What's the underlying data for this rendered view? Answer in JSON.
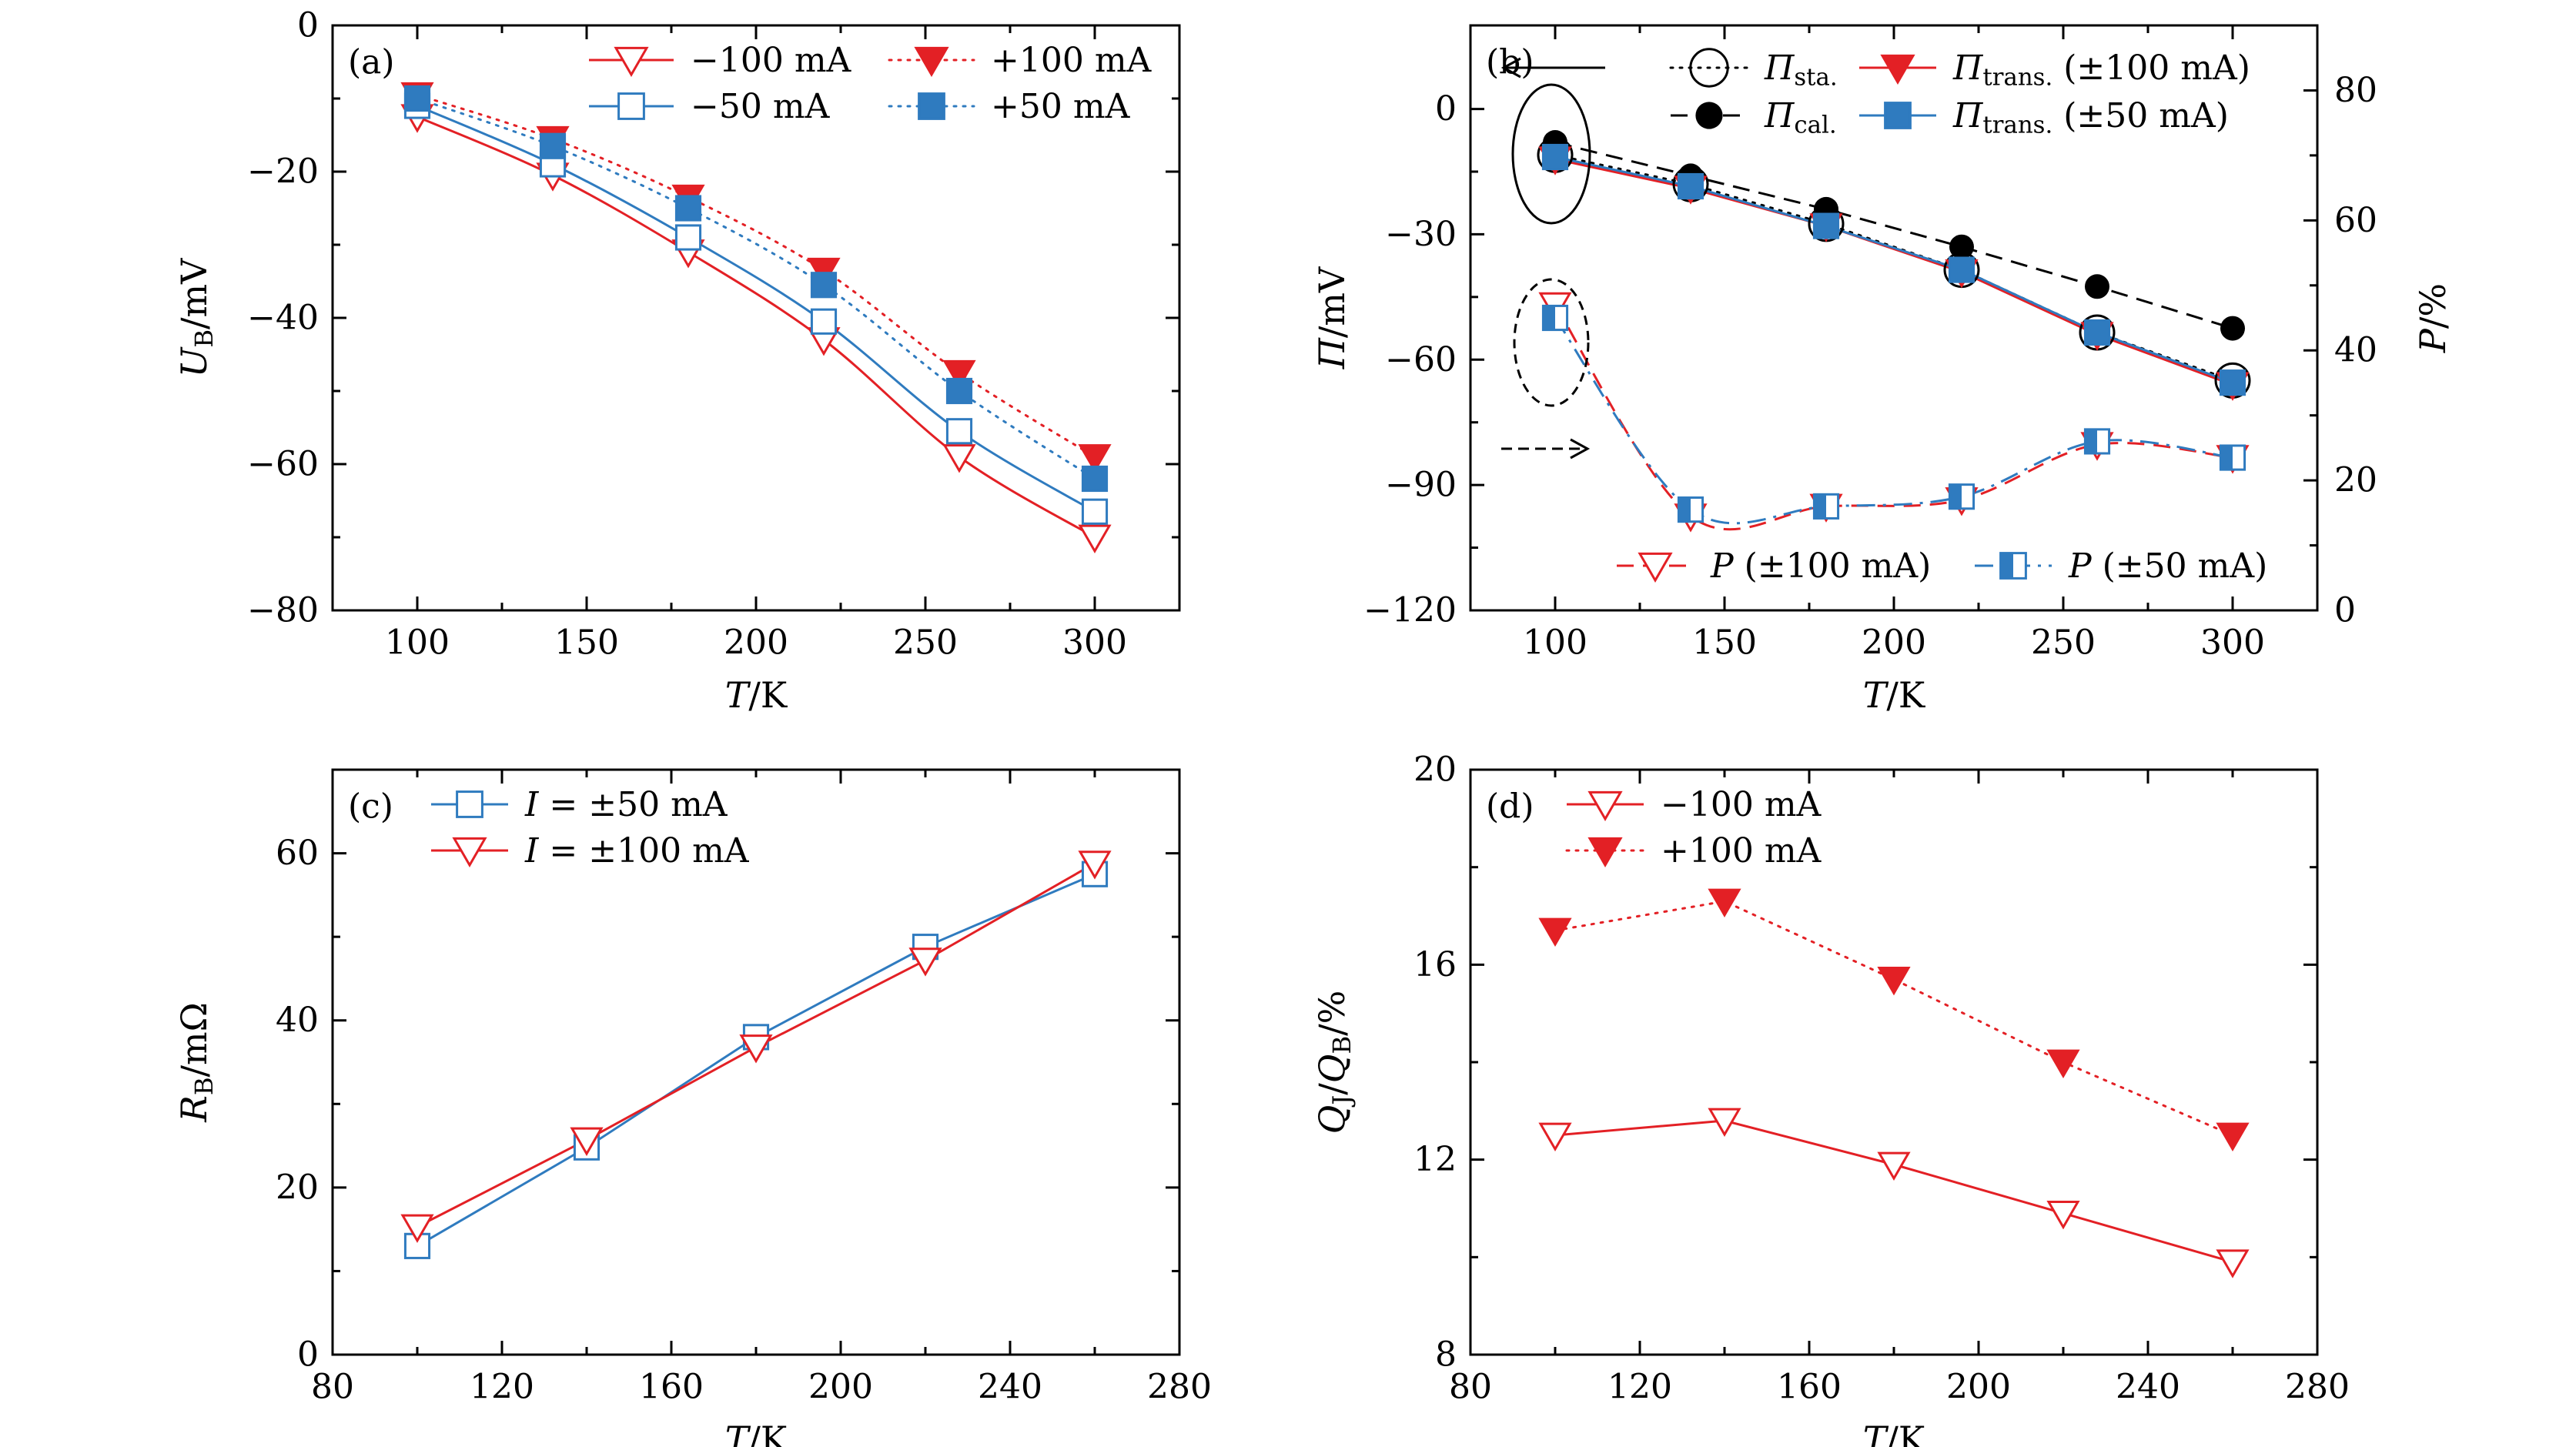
{
  "figure": {
    "colors": {
      "red": "#e32025",
      "blue": "#2f7bbf",
      "black": "#000000",
      "frame": "#000000"
    }
  },
  "chart_data": [
    {
      "id": "a",
      "panel_label": "(a)",
      "type": "line",
      "x_label": {
        "var": "T",
        "unit": "/K"
      },
      "y_label": {
        "var": "U",
        "sub": "B",
        "unit": "/mV"
      },
      "xlim": [
        75,
        325
      ],
      "ylim": [
        -80,
        0
      ],
      "x_ticks": [
        100,
        150,
        200,
        250,
        300
      ],
      "y_ticks": [
        0,
        -20,
        -40,
        -60,
        -80
      ],
      "y_tick_labels": [
        "0",
        "−20",
        "−40",
        "−60",
        "−80"
      ],
      "legend": {
        "position": "top-right",
        "columns": 2
      },
      "series": [
        {
          "name": "−100 mA",
          "color": "#e32025",
          "marker": "tri-down-open",
          "line": "solid",
          "smooth": true,
          "x": [
            100,
            140,
            180,
            220,
            260,
            300
          ],
          "y": [
            -12.5,
            -20.5,
            -31,
            -43,
            -59,
            -70
          ]
        },
        {
          "name": "+100 mA",
          "color": "#e32025",
          "marker": "tri-down-filled",
          "line": "dotted",
          "smooth": true,
          "x": [
            100,
            140,
            180,
            220,
            260,
            300
          ],
          "y": [
            -9.5,
            -15.5,
            -23.5,
            -33.5,
            -47.5,
            -59
          ]
        },
        {
          "name": "−50 mA",
          "color": "#2f7bbf",
          "marker": "square-open",
          "line": "solid",
          "smooth": true,
          "x": [
            100,
            140,
            180,
            220,
            260,
            300
          ],
          "y": [
            -11,
            -19,
            -29,
            -40.5,
            -55.5,
            -66.5
          ]
        },
        {
          "name": "+50 mA",
          "color": "#2f7bbf",
          "marker": "square-filled",
          "line": "dotted",
          "smooth": true,
          "x": [
            100,
            140,
            180,
            220,
            260,
            300
          ],
          "y": [
            -10,
            -16.5,
            -25,
            -35.5,
            -50,
            -62
          ]
        }
      ]
    },
    {
      "id": "b",
      "panel_label": "(b)",
      "type": "line",
      "x_label": {
        "var": "T",
        "unit": "/K"
      },
      "y_label": {
        "var": "Π",
        "unit": "/mV"
      },
      "y2_label": {
        "var": "P",
        "unit": "/%"
      },
      "xlim": [
        75,
        325
      ],
      "ylim": [
        -120,
        20
      ],
      "y2lim": [
        0,
        90
      ],
      "x_ticks": [
        100,
        150,
        200,
        250,
        300
      ],
      "y_ticks": [
        0,
        -30,
        -60,
        -90,
        -120
      ],
      "y_tick_labels": [
        "0",
        "−30",
        "−60",
        "−90",
        "−120"
      ],
      "y2_ticks": [
        0,
        20,
        40,
        60,
        80
      ],
      "legend": {
        "position": "top-right",
        "columns": 2
      },
      "legend_bottom": {
        "position": "bottom-right",
        "columns": 2
      },
      "series": [
        {
          "name": "Π",
          "sub": "sta.",
          "color": "#000000",
          "marker": "circle-open",
          "line": "dotted",
          "axis": "left",
          "x": [
            100,
            140,
            180,
            220,
            260,
            300
          ],
          "y": [
            -11,
            -18,
            -27.5,
            -38.5,
            -53.5,
            -65
          ]
        },
        {
          "name": "Π",
          "sub": "cal.",
          "color": "#000000",
          "marker": "circle-filled",
          "line": "dashed",
          "axis": "left",
          "x": [
            100,
            140,
            180,
            220,
            260,
            300
          ],
          "y": [
            -8,
            -16,
            -24,
            -33,
            -42.5,
            -52.5
          ]
        },
        {
          "name": "Π",
          "sub": "trans.",
          "suffix": " (±100 mA)",
          "color": "#e32025",
          "marker": "tri-down-filled",
          "line": "solid",
          "axis": "left",
          "x": [
            100,
            140,
            180,
            220,
            260,
            300
          ],
          "y": [
            -12,
            -19,
            -28,
            -39,
            -54,
            -66
          ]
        },
        {
          "name": "Π",
          "sub": "trans.",
          "suffix": " (±50 mA)",
          "color": "#2f7bbf",
          "marker": "square-filled",
          "line": "solid",
          "axis": "left",
          "x": [
            100,
            140,
            180,
            220,
            260,
            300
          ],
          "y": [
            -11.5,
            -18.5,
            -28,
            -38.5,
            -53.5,
            -65.5
          ]
        },
        {
          "name": "P",
          "suffix": " (±100 mA)",
          "color": "#e32025",
          "marker": "tri-down-open-red",
          "line": "dashed",
          "axis": "right",
          "smooth": true,
          "x": [
            100,
            140,
            180,
            220,
            260,
            300
          ],
          "y": [
            47,
            14.5,
            16,
            17,
            25.5,
            23.5
          ]
        },
        {
          "name": "P",
          "suffix": " (±50 mA)",
          "color": "#2f7bbf",
          "marker": "square-half",
          "line": "dashdot",
          "axis": "right",
          "smooth": true,
          "x": [
            100,
            140,
            180,
            220,
            260,
            300
          ],
          "y": [
            45,
            15.5,
            16,
            17.5,
            26,
            23.5
          ]
        }
      ]
    },
    {
      "id": "c",
      "panel_label": "(c)",
      "type": "line",
      "x_label": {
        "var": "T",
        "unit": "/K"
      },
      "y_label": {
        "var": "R",
        "sub": "B",
        "unit": "/mΩ"
      },
      "xlim": [
        80,
        280
      ],
      "ylim": [
        0,
        70
      ],
      "x_ticks": [
        80,
        120,
        160,
        200,
        240,
        280
      ],
      "y_ticks": [
        0,
        20,
        40,
        60
      ],
      "legend": {
        "position": "top-left",
        "columns": 1
      },
      "series": [
        {
          "name": "I = ±50 mA",
          "color": "#2f7bbf",
          "marker": "square-open",
          "line": "solid",
          "x": [
            100,
            140,
            180,
            220,
            260
          ],
          "y": [
            13,
            24.8,
            38,
            48.8,
            57.5
          ]
        },
        {
          "name": "I = ±100 mA",
          "color": "#e32025",
          "marker": "tri-down-open",
          "line": "solid",
          "x": [
            100,
            140,
            180,
            220,
            260
          ],
          "y": [
            15.3,
            25.7,
            36.8,
            47.2,
            58.8
          ]
        }
      ]
    },
    {
      "id": "d",
      "panel_label": "(d)",
      "type": "line",
      "x_label": {
        "var": "T",
        "unit": "/K"
      },
      "y_label": {
        "var": "Q",
        "sub": "J",
        "mid": "/Q",
        "sub2": "B",
        "unit": "/%"
      },
      "xlim": [
        80,
        280
      ],
      "ylim": [
        8,
        20
      ],
      "x_ticks": [
        80,
        120,
        160,
        200,
        240,
        280
      ],
      "y_ticks": [
        8,
        12,
        16,
        20
      ],
      "legend": {
        "position": "top-left",
        "columns": 1
      },
      "series": [
        {
          "name": "−100 mA",
          "color": "#e32025",
          "marker": "tri-down-open",
          "line": "solid",
          "x": [
            100,
            140,
            180,
            220,
            260
          ],
          "y": [
            12.5,
            12.8,
            11.9,
            10.9,
            9.9
          ]
        },
        {
          "name": "+100 mA",
          "color": "#e32025",
          "marker": "tri-down-filled",
          "line": "dotted",
          "x": [
            100,
            140,
            180,
            220,
            260
          ],
          "y": [
            16.7,
            17.3,
            15.7,
            14.0,
            12.5
          ]
        }
      ]
    }
  ]
}
